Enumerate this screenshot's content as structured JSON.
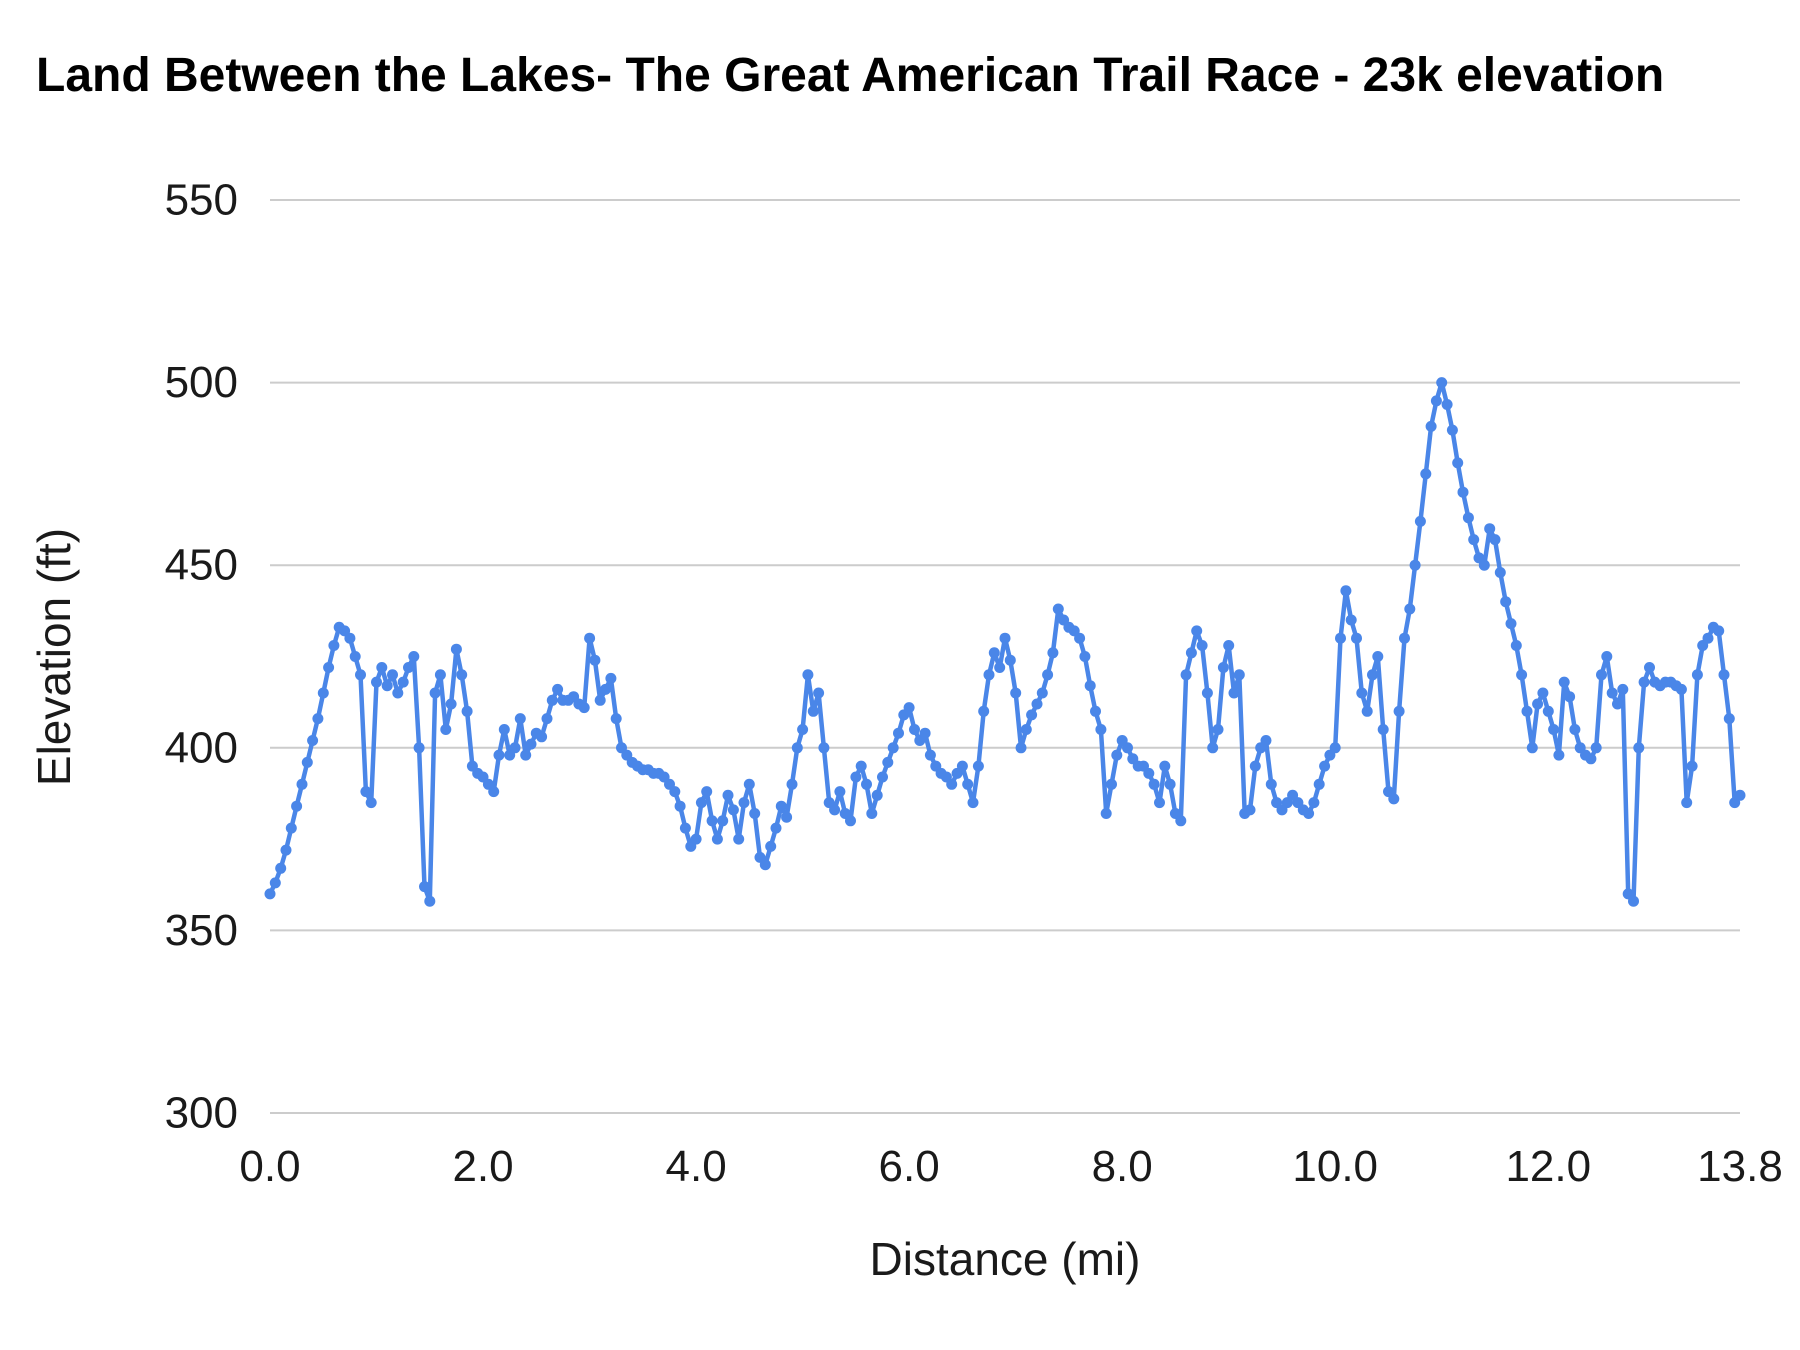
{
  "chart_data": {
    "type": "line",
    "title": "Land Between the Lakes- The Great American Trail Race - 23k elevation",
    "xlabel": "Distance (mi)",
    "ylabel": "Elevation (ft)",
    "xlim": [
      0,
      13.8
    ],
    "ylim": [
      300,
      550
    ],
    "yticks": [
      300,
      350,
      400,
      450,
      500,
      550
    ],
    "xticks": [
      {
        "value": 0,
        "label": "0.0"
      },
      {
        "value": 2,
        "label": "2.0"
      },
      {
        "value": 4,
        "label": "4.0"
      },
      {
        "value": 6,
        "label": "6.0"
      },
      {
        "value": 8,
        "label": "8.0"
      },
      {
        "value": 10,
        "label": "10.0"
      },
      {
        "value": 12,
        "label": "12.0"
      },
      {
        "value": 13.8,
        "label": "13.8"
      }
    ],
    "grid": "horizontal",
    "legend": "none",
    "colors": {
      "series": "#4a86e8",
      "gridline": "#cccccc",
      "text": "#1a1a1a"
    },
    "series": [
      {
        "name": "Elevation",
        "color": "#4a86e8",
        "x_start": 0,
        "x_step": 0.05,
        "values": [
          360,
          363,
          367,
          372,
          378,
          384,
          390,
          396,
          402,
          408,
          415,
          422,
          428,
          433,
          432,
          430,
          425,
          420,
          388,
          385,
          418,
          422,
          417,
          420,
          415,
          418,
          422,
          425,
          400,
          362,
          358,
          415,
          420,
          405,
          412,
          427,
          420,
          410,
          395,
          393,
          392,
          390,
          388,
          398,
          405,
          398,
          400,
          408,
          398,
          401,
          404,
          403,
          408,
          413,
          416,
          413,
          413,
          414,
          412,
          411,
          430,
          424,
          413,
          416,
          419,
          408,
          400,
          398,
          396,
          395,
          394,
          394,
          393,
          393,
          392,
          390,
          388,
          384,
          378,
          373,
          375,
          385,
          388,
          380,
          375,
          380,
          387,
          383,
          375,
          385,
          390,
          382,
          370,
          368,
          373,
          378,
          384,
          381,
          390,
          400,
          405,
          420,
          410,
          415,
          400,
          385,
          383,
          388,
          382,
          380,
          392,
          395,
          390,
          382,
          387,
          392,
          396,
          400,
          404,
          409,
          411,
          405,
          402,
          404,
          398,
          395,
          393,
          392,
          390,
          393,
          395,
          390,
          385,
          395,
          410,
          420,
          426,
          422,
          430,
          424,
          415,
          400,
          405,
          409,
          412,
          415,
          420,
          426,
          438,
          435,
          433,
          432,
          430,
          425,
          417,
          410,
          405,
          382,
          390,
          398,
          402,
          400,
          397,
          395,
          395,
          393,
          390,
          385,
          395,
          390,
          382,
          380,
          420,
          426,
          432,
          428,
          415,
          400,
          405,
          422,
          428,
          415,
          420,
          382,
          383,
          395,
          400,
          402,
          390,
          385,
          383,
          385,
          387,
          385,
          383,
          382,
          385,
          390,
          395,
          398,
          400,
          430,
          443,
          435,
          430,
          415,
          410,
          420,
          425,
          405,
          388,
          386,
          410,
          430,
          438,
          450,
          462,
          475,
          488,
          495,
          500,
          494,
          487,
          478,
          470,
          463,
          457,
          452,
          450,
          460,
          457,
          448,
          440,
          434,
          428,
          420,
          410,
          400,
          412,
          415,
          410,
          405,
          398,
          418,
          414,
          405,
          400,
          398,
          397,
          400,
          420,
          425,
          415,
          412,
          416,
          360,
          358,
          400,
          418,
          422,
          418,
          417,
          418,
          418,
          417,
          416,
          385,
          395,
          420,
          428,
          430,
          433,
          432,
          420,
          408,
          385,
          387
        ]
      }
    ]
  }
}
